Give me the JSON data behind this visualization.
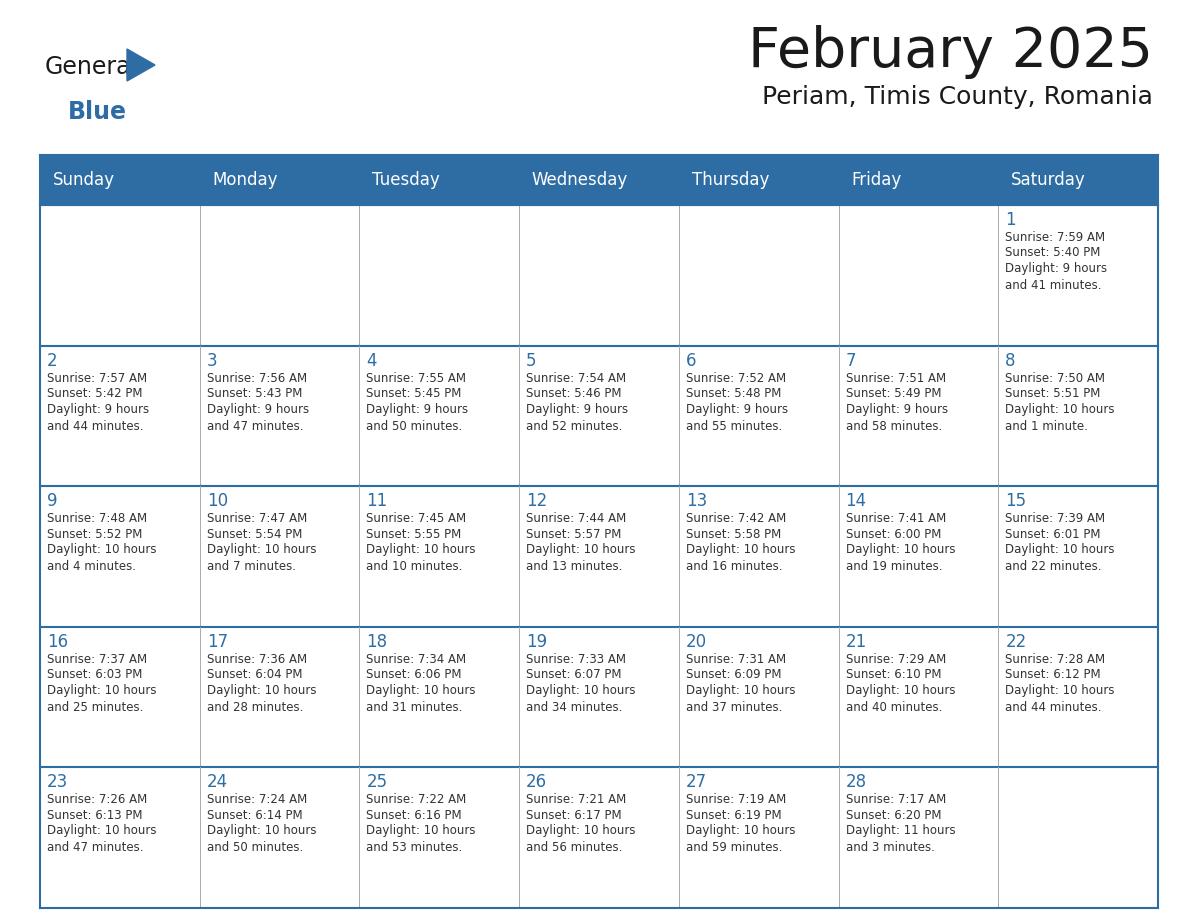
{
  "title": "February 2025",
  "subtitle": "Periam, Timis County, Romania",
  "days_of_week": [
    "Sunday",
    "Monday",
    "Tuesday",
    "Wednesday",
    "Thursday",
    "Friday",
    "Saturday"
  ],
  "header_bg": "#2E6DA4",
  "header_text": "#FFFFFF",
  "cell_bg": "#FFFFFF",
  "border_color": "#2E6DA4",
  "cell_line_color": "#AAAAAA",
  "text_color": "#333333",
  "day_number_color": "#2E6DA4",
  "logo_general_color": "#1A1A1A",
  "logo_blue_color": "#2E6DA4",
  "calendar_data": [
    [
      null,
      null,
      null,
      null,
      null,
      null,
      {
        "day": 1,
        "sunrise": "7:59 AM",
        "sunset": "5:40 PM",
        "daylight": "9 hours\nand 41 minutes."
      }
    ],
    [
      {
        "day": 2,
        "sunrise": "7:57 AM",
        "sunset": "5:42 PM",
        "daylight": "9 hours\nand 44 minutes."
      },
      {
        "day": 3,
        "sunrise": "7:56 AM",
        "sunset": "5:43 PM",
        "daylight": "9 hours\nand 47 minutes."
      },
      {
        "day": 4,
        "sunrise": "7:55 AM",
        "sunset": "5:45 PM",
        "daylight": "9 hours\nand 50 minutes."
      },
      {
        "day": 5,
        "sunrise": "7:54 AM",
        "sunset": "5:46 PM",
        "daylight": "9 hours\nand 52 minutes."
      },
      {
        "day": 6,
        "sunrise": "7:52 AM",
        "sunset": "5:48 PM",
        "daylight": "9 hours\nand 55 minutes."
      },
      {
        "day": 7,
        "sunrise": "7:51 AM",
        "sunset": "5:49 PM",
        "daylight": "9 hours\nand 58 minutes."
      },
      {
        "day": 8,
        "sunrise": "7:50 AM",
        "sunset": "5:51 PM",
        "daylight": "10 hours\nand 1 minute."
      }
    ],
    [
      {
        "day": 9,
        "sunrise": "7:48 AM",
        "sunset": "5:52 PM",
        "daylight": "10 hours\nand 4 minutes."
      },
      {
        "day": 10,
        "sunrise": "7:47 AM",
        "sunset": "5:54 PM",
        "daylight": "10 hours\nand 7 minutes."
      },
      {
        "day": 11,
        "sunrise": "7:45 AM",
        "sunset": "5:55 PM",
        "daylight": "10 hours\nand 10 minutes."
      },
      {
        "day": 12,
        "sunrise": "7:44 AM",
        "sunset": "5:57 PM",
        "daylight": "10 hours\nand 13 minutes."
      },
      {
        "day": 13,
        "sunrise": "7:42 AM",
        "sunset": "5:58 PM",
        "daylight": "10 hours\nand 16 minutes."
      },
      {
        "day": 14,
        "sunrise": "7:41 AM",
        "sunset": "6:00 PM",
        "daylight": "10 hours\nand 19 minutes."
      },
      {
        "day": 15,
        "sunrise": "7:39 AM",
        "sunset": "6:01 PM",
        "daylight": "10 hours\nand 22 minutes."
      }
    ],
    [
      {
        "day": 16,
        "sunrise": "7:37 AM",
        "sunset": "6:03 PM",
        "daylight": "10 hours\nand 25 minutes."
      },
      {
        "day": 17,
        "sunrise": "7:36 AM",
        "sunset": "6:04 PM",
        "daylight": "10 hours\nand 28 minutes."
      },
      {
        "day": 18,
        "sunrise": "7:34 AM",
        "sunset": "6:06 PM",
        "daylight": "10 hours\nand 31 minutes."
      },
      {
        "day": 19,
        "sunrise": "7:33 AM",
        "sunset": "6:07 PM",
        "daylight": "10 hours\nand 34 minutes."
      },
      {
        "day": 20,
        "sunrise": "7:31 AM",
        "sunset": "6:09 PM",
        "daylight": "10 hours\nand 37 minutes."
      },
      {
        "day": 21,
        "sunrise": "7:29 AM",
        "sunset": "6:10 PM",
        "daylight": "10 hours\nand 40 minutes."
      },
      {
        "day": 22,
        "sunrise": "7:28 AM",
        "sunset": "6:12 PM",
        "daylight": "10 hours\nand 44 minutes."
      }
    ],
    [
      {
        "day": 23,
        "sunrise": "7:26 AM",
        "sunset": "6:13 PM",
        "daylight": "10 hours\nand 47 minutes."
      },
      {
        "day": 24,
        "sunrise": "7:24 AM",
        "sunset": "6:14 PM",
        "daylight": "10 hours\nand 50 minutes."
      },
      {
        "day": 25,
        "sunrise": "7:22 AM",
        "sunset": "6:16 PM",
        "daylight": "10 hours\nand 53 minutes."
      },
      {
        "day": 26,
        "sunrise": "7:21 AM",
        "sunset": "6:17 PM",
        "daylight": "10 hours\nand 56 minutes."
      },
      {
        "day": 27,
        "sunrise": "7:19 AM",
        "sunset": "6:19 PM",
        "daylight": "10 hours\nand 59 minutes."
      },
      {
        "day": 28,
        "sunrise": "7:17 AM",
        "sunset": "6:20 PM",
        "daylight": "11 hours\nand 3 minutes."
      },
      null
    ]
  ]
}
